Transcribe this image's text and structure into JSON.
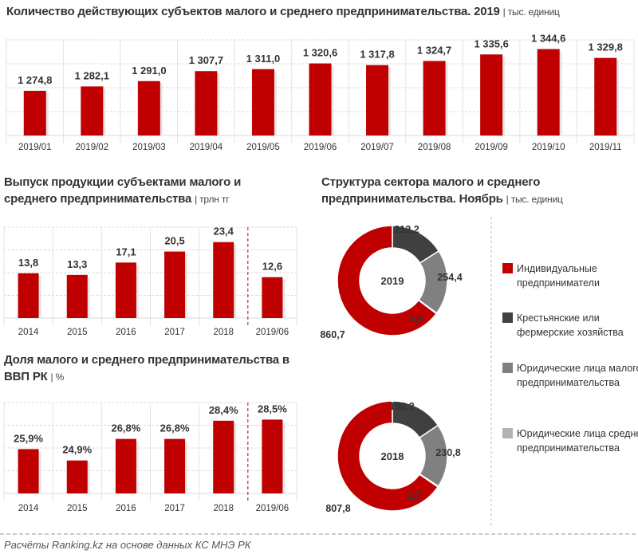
{
  "colors": {
    "red": "#c00000",
    "dark": "#404040",
    "gray": "#808080",
    "light": "#b3b3b3",
    "grid": "#d9d9d9"
  },
  "chart_data": [
    {
      "type": "bar",
      "title": "Количество действующих субъектов малого и среднего предпринимательства. 2019",
      "unit": "| тыс. единиц",
      "categories": [
        "2019/01",
        "2019/02",
        "2019/03",
        "2019/04",
        "2019/05",
        "2019/06",
        "2019/07",
        "2019/08",
        "2019/09",
        "2019/10",
        "2019/11"
      ],
      "values": [
        1274.8,
        1282.1,
        1291.0,
        1307.7,
        1311.0,
        1320.6,
        1317.8,
        1324.7,
        1335.6,
        1344.6,
        1329.8
      ],
      "labels": [
        "1 274,8",
        "1 282,1",
        "1 291,0",
        "1 307,7",
        "1 311,0",
        "1 320,6",
        "1 317,8",
        "1 324,7",
        "1 335,6",
        "1 344,6",
        "1 329,8"
      ],
      "ylim": [
        1200,
        1360
      ],
      "grid": true
    },
    {
      "type": "bar",
      "title": "Выпуск продукции субъектами малого и среднего предпринимательства",
      "unit": "| трлн тг",
      "categories": [
        "2014",
        "2015",
        "2016",
        "2017",
        "2018",
        "2019/06"
      ],
      "values": [
        13.8,
        13.3,
        17.1,
        20.5,
        23.4,
        12.6
      ],
      "labels": [
        "13,8",
        "13,3",
        "17,1",
        "20,5",
        "23,4",
        "12,6"
      ],
      "ylim": [
        0,
        28
      ],
      "grid": true
    },
    {
      "type": "bar",
      "title": "Доля малого и среднего предпринимательства в ВВП РК",
      "unit": "| %",
      "categories": [
        "2014",
        "2015",
        "2016",
        "2017",
        "2018",
        "2019/06"
      ],
      "values": [
        25.9,
        24.9,
        26.8,
        26.8,
        28.4,
        28.5
      ],
      "labels": [
        "25,9%",
        "24,9%",
        "26,8%",
        "26,8%",
        "28,4%",
        "28,5%"
      ],
      "ylim": [
        22,
        30
      ],
      "grid": true
    },
    {
      "type": "pie",
      "title": "Структура сектора малого и среднего предпринимательства. Ноябрь",
      "unit": "| тыс. единиц",
      "legend": [
        "Индивидуальные предприниматели",
        "Крестьянские или фермерские хозяйства",
        "Юридические лица малого предпринимательства",
        "Юридические лица среднего предпринимательства"
      ],
      "legend_position": "right",
      "donuts": [
        {
          "center_label": "2019",
          "values": [
            860.7,
            212.2,
            254.4,
            2.5
          ],
          "labels": [
            "860,7",
            "212,2",
            "254,4",
            "2,5"
          ]
        },
        {
          "center_label": "2018",
          "values": [
            807.8,
            192.2,
            230.8,
            2.7
          ],
          "labels": [
            "807,8",
            "192,2",
            "230,8",
            "2,7"
          ]
        }
      ]
    }
  ],
  "footer": "Расчёты Ranking.kz на основе данных КС МНЭ РК"
}
